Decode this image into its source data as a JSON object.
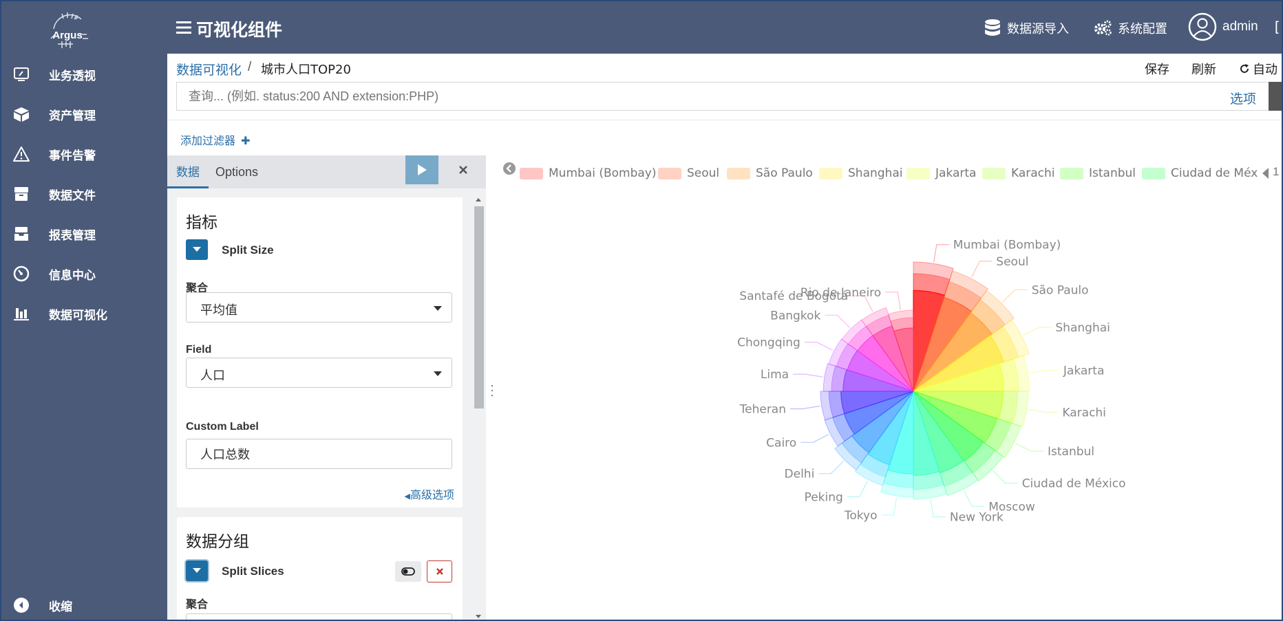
{
  "sidebar": {
    "logo_text": "Argus",
    "items": [
      {
        "label": "业务透视",
        "icon": "monitor-icon"
      },
      {
        "label": "资产管理",
        "icon": "cube-icon"
      },
      {
        "label": "事件告警",
        "icon": "warning-icon"
      },
      {
        "label": "数据文件",
        "icon": "archive-icon"
      },
      {
        "label": "报表管理",
        "icon": "inbox-icon"
      },
      {
        "label": "信息中心",
        "icon": "gauge-icon"
      },
      {
        "label": "数据可视化",
        "icon": "bar-chart-icon"
      }
    ],
    "collapse_label": "收缩"
  },
  "topbar": {
    "title": "可视化组件",
    "datasource_label": "数据源导入",
    "settings_label": "系统配置",
    "user_name": "admin"
  },
  "breadcrumb": {
    "parent": "数据可视化",
    "separator": "/",
    "current": "城市人口TOP20",
    "save_label": "保存",
    "refresh_label": "刷新",
    "auto_label": "自动"
  },
  "query": {
    "placeholder": "查询... (例如. status:200 AND extension:PHP)",
    "options_label": "选项"
  },
  "filter": {
    "add_label": "添加过滤器"
  },
  "editor": {
    "tabs": [
      "数据",
      "Options"
    ],
    "metrics": {
      "title": "指标",
      "agg_name": "Split Size",
      "agg_label": "聚合",
      "agg_value": "平均值",
      "field_label": "Field",
      "field_value": "人口",
      "custom_label_label": "Custom Label",
      "custom_label_value": "人口总数",
      "advanced_label": "高级选项"
    },
    "buckets": {
      "title": "数据分组",
      "agg_name": "Split Slices",
      "agg_label": "聚合"
    }
  },
  "chart_data": {
    "type": "pie",
    "subtype": "nightingale-rose",
    "legend_position": "top",
    "legend_visible": [
      "Mumbai (Bombay)",
      "Seoul",
      "São Paulo",
      "Shanghai",
      "Jakarta",
      "Karachi",
      "Istanbul",
      "Ciudad de Méx"
    ],
    "legend_page": "1",
    "categories": [
      "Mumbai (Bombay)",
      "Seoul",
      "São Paulo",
      "Shanghai",
      "Jakarta",
      "Karachi",
      "Istanbul",
      "Ciudad de México",
      "Moscow",
      "New York",
      "Tokyo",
      "Peking",
      "Delhi",
      "Cairo",
      "Teheran",
      "Lima",
      "Chongqing",
      "Bangkok",
      "Santafé de Bogotá",
      "Rio de Janeiro"
    ],
    "values": [
      10500000,
      10230000,
      10000000,
      9700000,
      9110000,
      9000000,
      8800000,
      8600000,
      8500000,
      8300000,
      8100000,
      7400000,
      7200000,
      6800000,
      6750000,
      6460000,
      6350000,
      6300000,
      6250000,
      5550000
    ],
    "colors": [
      "#ff0000",
      "#ff5a1e",
      "#ff9a28",
      "#ffe628",
      "#f0ff3c",
      "#c8ff3c",
      "#78ff3c",
      "#3cff5a",
      "#3cff96",
      "#3cffc8",
      "#3cfff0",
      "#3cdcff",
      "#3ca0ff",
      "#3c64ff",
      "#503cff",
      "#963cff",
      "#d23cff",
      "#ff3ce6",
      "#ff3caa",
      "#ff3c6e"
    ]
  }
}
